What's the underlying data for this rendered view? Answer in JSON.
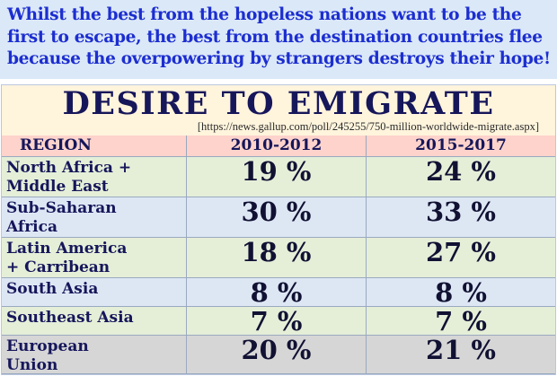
{
  "headline": {
    "line1": "Whilst the best from the hopeless nations want to be the",
    "line2": "first to escape, the best from the destination countries flee",
    "line3": "because the overpowering by strangers destroys their hope!"
  },
  "table": {
    "title": "DESIRE TO EMIGRATE",
    "source": "[https://news.gallup.com/poll/245255/750-million-worldwide-migrate.aspx]",
    "columns": [
      "REGION",
      "2010-2012",
      "2015-2017"
    ],
    "rows": [
      {
        "region": "North Africa +\nMiddle East",
        "v1": "19 %",
        "v2": "24 %"
      },
      {
        "region": "Sub-Saharan\nAfrica",
        "v1": "30 %",
        "v2": "33 %"
      },
      {
        "region": "Latin America\n+ Carribean",
        "v1": "18 %",
        "v2": "27 %"
      },
      {
        "region": "South Asia",
        "v1": "8 %",
        "v2": "8 %"
      },
      {
        "region": "Southeast Asia",
        "v1": "7 %",
        "v2": "7 %"
      },
      {
        "region": "European\nUnion",
        "v1": "20 %",
        "v2": "21 %"
      }
    ],
    "row_colors": [
      "#e5efd8",
      "#dde7f4",
      "#e5efd8",
      "#dde7f4",
      "#e5efd8",
      "#d6d6d6"
    ]
  },
  "chart_data": {
    "type": "table",
    "title": "DESIRE TO EMIGRATE",
    "columns": [
      "REGION",
      "2010-2012",
      "2015-2017"
    ],
    "categories": [
      "North Africa + Middle East",
      "Sub-Saharan Africa",
      "Latin America + Carribean",
      "South Asia",
      "Southeast Asia",
      "European Union"
    ],
    "series": [
      {
        "name": "2010-2012",
        "values": [
          19,
          30,
          18,
          8,
          7,
          20
        ]
      },
      {
        "name": "2015-2017",
        "values": [
          24,
          33,
          27,
          8,
          7,
          21
        ]
      }
    ]
  }
}
